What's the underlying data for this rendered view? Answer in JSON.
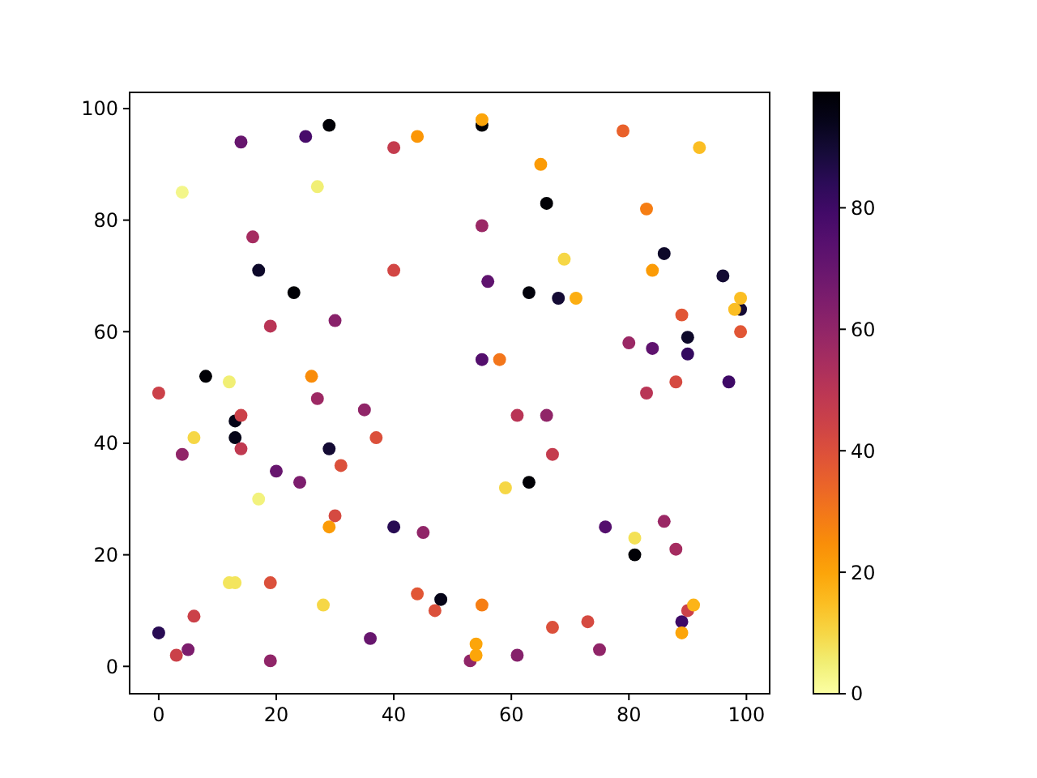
{
  "chart_data": {
    "type": "scatter",
    "marker": "circle",
    "grid": false,
    "xlim": [
      -4.95,
      103.95
    ],
    "ylim": [
      -4.9,
      102.9
    ],
    "xticks": [
      0,
      20,
      40,
      60,
      80,
      100
    ],
    "yticks": [
      0,
      20,
      40,
      60,
      80,
      100
    ],
    "clim": [
      0,
      99
    ],
    "cticks": [
      0,
      20,
      40,
      60,
      80
    ],
    "series": [
      {
        "x": [
          0,
          0,
          3,
          5,
          6,
          4,
          4,
          6,
          8,
          12,
          12,
          13,
          13,
          13,
          14,
          14,
          14,
          16,
          17,
          17,
          19,
          19,
          19,
          20,
          23,
          24,
          25,
          26,
          27,
          27,
          28,
          29,
          29,
          29,
          30,
          30,
          31,
          35,
          36,
          37,
          40,
          40,
          40,
          44,
          44,
          45,
          47,
          48,
          53,
          54,
          54,
          55,
          55,
          55,
          55,
          55,
          56,
          58,
          59,
          61,
          61,
          63,
          63,
          65,
          66,
          66,
          67,
          67,
          68,
          69,
          71,
          73,
          75,
          76,
          79,
          80,
          81,
          81,
          83,
          83,
          84,
          84,
          86,
          86,
          88,
          88,
          89,
          89,
          89,
          90,
          91,
          90,
          90,
          92,
          96,
          97,
          99,
          98,
          99,
          99
        ],
        "values": [
          49,
          6,
          2,
          3,
          9,
          38,
          85,
          41,
          52,
          51,
          15,
          15,
          44,
          41,
          45,
          39,
          94,
          77,
          71,
          30,
          61,
          15,
          1,
          35,
          67,
          33,
          95,
          52,
          86,
          48,
          11,
          97,
          39,
          25,
          62,
          27,
          36,
          46,
          5,
          41,
          93,
          71,
          25,
          95,
          13,
          24,
          10,
          12,
          1,
          4,
          2,
          97,
          98,
          79,
          55,
          11,
          69,
          55,
          32,
          45,
          2,
          67,
          33,
          90,
          83,
          45,
          38,
          7,
          66,
          73,
          66,
          8,
          3,
          25,
          96,
          58,
          23,
          20,
          82,
          49,
          71,
          57,
          74,
          26,
          51,
          21,
          63,
          8,
          6,
          10,
          11,
          59,
          56,
          93,
          70,
          51,
          64,
          64,
          66,
          60
        ],
        "cvalues": [
          45,
          85,
          45,
          65,
          45,
          60,
          3,
          10,
          98,
          5,
          7,
          7,
          95,
          95,
          45,
          48,
          70,
          55,
          92,
          4,
          50,
          40,
          60,
          70,
          98,
          65,
          78,
          25,
          5,
          57,
          10,
          98,
          90,
          22,
          62,
          42,
          40,
          60,
          70,
          40,
          47,
          43,
          85,
          23,
          38,
          60,
          40,
          95,
          60,
          20,
          20,
          98,
          20,
          58,
          75,
          28,
          72,
          30,
          10,
          50,
          63,
          97,
          98,
          22,
          98,
          60,
          47,
          40,
          90,
          10,
          18,
          42,
          60,
          75,
          35,
          58,
          8,
          98,
          28,
          50,
          22,
          72,
          92,
          58,
          42,
          55,
          38,
          80,
          20,
          45,
          17,
          92,
          82,
          15,
          90,
          80,
          90,
          15,
          15,
          38
        ]
      }
    ]
  }
}
